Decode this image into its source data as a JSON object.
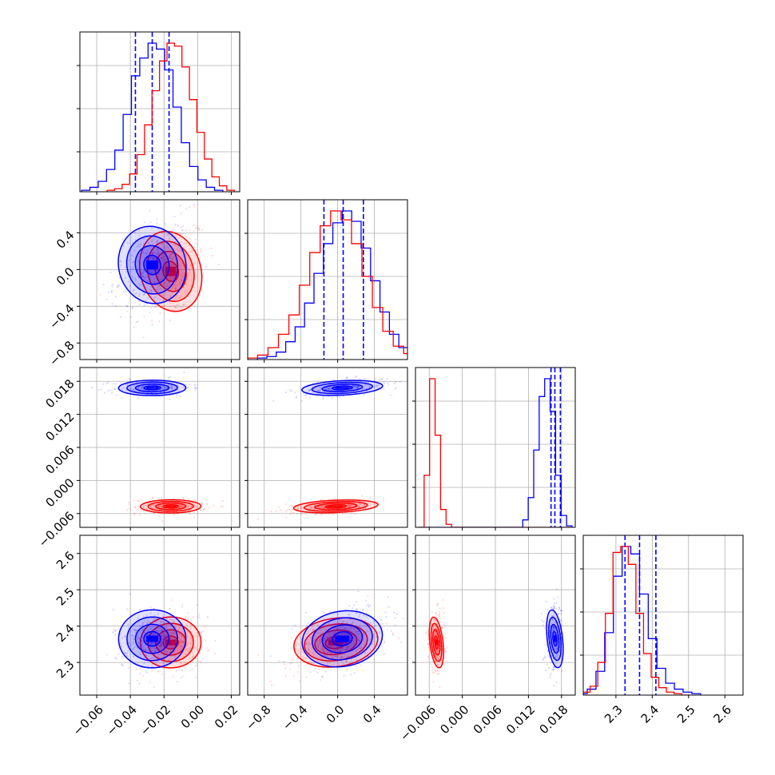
{
  "chart_data": {
    "type": "corner",
    "grid": true,
    "colors": {
      "series_a": "#0000ff",
      "series_b": "#ff0000"
    },
    "parameters": [
      {
        "range": [
          -0.07,
          0.025
        ],
        "ticks": [
          -0.06,
          -0.04,
          -0.02,
          0.0,
          0.02
        ],
        "tick_labels": [
          "−0.06",
          "−0.04",
          "−0.02",
          "0.00",
          "0.02"
        ]
      },
      {
        "range": [
          -0.98,
          0.76
        ],
        "ticks": [
          -0.8,
          -0.4,
          0.0,
          0.4
        ],
        "tick_labels": [
          "−0.8",
          "−0.4",
          "0.0",
          "0.4"
        ]
      },
      {
        "range": [
          -0.0085,
          0.0205
        ],
        "ticks": [
          -0.006,
          0.0,
          0.006,
          0.012,
          0.018
        ],
        "tick_labels": [
          "−0.006",
          "0.000",
          "0.006",
          "0.012",
          "0.018"
        ]
      },
      {
        "range": [
          2.21,
          2.65
        ],
        "ticks": [
          2.3,
          2.4,
          2.5,
          2.6
        ],
        "tick_labels": [
          "2.3",
          "2.4",
          "2.5",
          "2.6"
        ]
      }
    ],
    "series": [
      {
        "color": "#0000ff",
        "mean": [
          -0.027,
          0.05,
          0.0168,
          2.365
        ],
        "sd": [
          0.01,
          0.22,
          0.0007,
          0.04
        ],
        "quantiles": [
          [
            -0.037,
            -0.027,
            -0.017
          ],
          [
            -0.15,
            0.06,
            0.28
          ],
          [
            0.0161,
            0.0168,
            0.0178
          ],
          [
            2.325,
            2.365,
            2.41
          ]
        ],
        "histograms": [
          [
            1,
            3,
            7,
            15,
            28,
            52,
            78,
            90,
            100,
            96,
            82,
            57,
            33,
            17,
            8,
            3,
            1
          ],
          [
            1,
            2,
            5,
            12,
            22,
            38,
            58,
            78,
            92,
            100,
            93,
            75,
            53,
            32,
            17,
            8,
            3,
            1
          ],
          [
            0,
            0,
            0,
            0,
            0,
            0,
            0,
            0,
            0,
            0,
            0,
            0,
            0,
            0,
            0,
            0,
            0,
            0,
            0,
            5,
            20,
            52,
            88,
            100,
            78,
            35,
            8,
            1
          ],
          [
            1,
            4,
            16,
            42,
            80,
            100,
            95,
            68,
            38,
            18,
            8,
            4,
            2,
            1
          ]
        ]
      },
      {
        "color": "#ff0000",
        "mean": [
          -0.016,
          -0.02,
          -0.0047,
          2.355
        ],
        "sd": [
          0.009,
          0.23,
          0.0006,
          0.035
        ],
        "quantiles": [
          [],
          [],
          [],
          []
        ],
        "histograms": [
          [
            1,
            2,
            5,
            12,
            25,
            45,
            68,
            88,
            100,
            98,
            84,
            62,
            40,
            22,
            10,
            4,
            1
          ],
          [
            1,
            3,
            8,
            17,
            30,
            50,
            72,
            90,
            100,
            94,
            78,
            56,
            35,
            19,
            9,
            4,
            1
          ],
          [
            0,
            35,
            100,
            62,
            12,
            2,
            0,
            0,
            0,
            0,
            0,
            0,
            0,
            0,
            0,
            0,
            0,
            0,
            0,
            0,
            0,
            0,
            0,
            0,
            0,
            0,
            0,
            0
          ],
          [
            2,
            6,
            22,
            55,
            96,
            100,
            88,
            55,
            28,
            12,
            5,
            2,
            1,
            0
          ]
        ]
      }
    ],
    "correlations": {
      "1-0": 0.35,
      "2-0": 0.05,
      "2-1": 0.45,
      "3-0": 0.05,
      "3-1": 0.4,
      "3-2": 0.05
    }
  }
}
